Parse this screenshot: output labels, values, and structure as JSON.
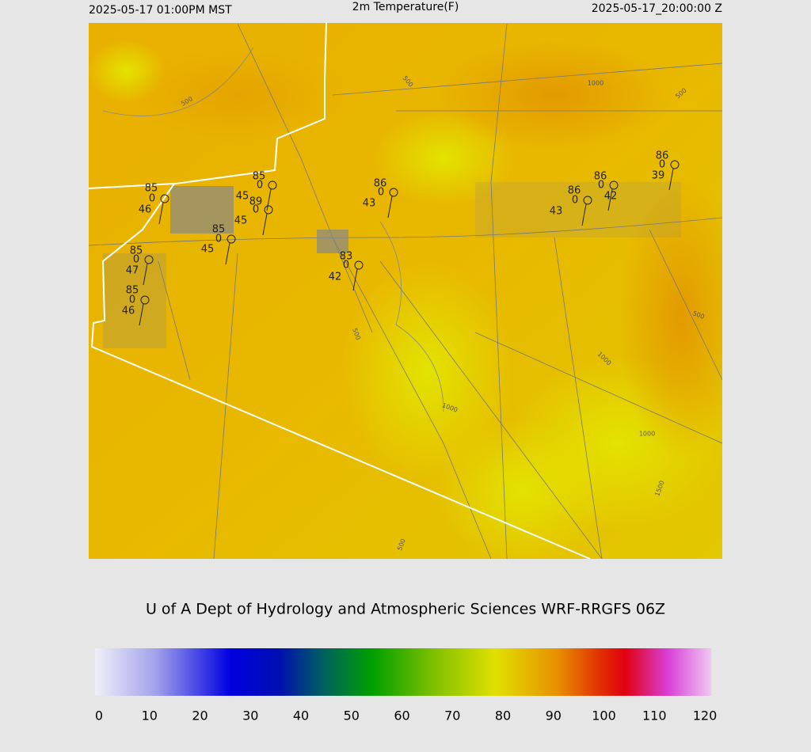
{
  "header": {
    "left": "2025-05-17 01:00PM MST",
    "title": "2m Temperature(F)",
    "right": "2025-05-17_20:00:00 Z"
  },
  "stations": [
    {
      "temperature": 85,
      "wind": 0,
      "dewpoint": 46
    },
    {
      "temperature": 85,
      "wind": 0,
      "dewpoint": 45
    },
    {
      "temperature": 89,
      "wind": 0,
      "dewpoint": 45
    },
    {
      "temperature": 85,
      "wind": 0,
      "dewpoint": 45
    },
    {
      "temperature": 85,
      "wind": 0,
      "dewpoint": 47
    },
    {
      "temperature": 85,
      "wind": 0,
      "dewpoint": 46
    },
    {
      "temperature": 86,
      "wind": 0,
      "dewpoint": 43
    },
    {
      "temperature": 83,
      "wind": 0,
      "dewpoint": 42
    },
    {
      "temperature": 86,
      "wind": 0,
      "dewpoint": 43
    },
    {
      "temperature": 86,
      "wind": 0,
      "dewpoint": 42
    },
    {
      "temperature": 86,
      "wind": 0,
      "dewpoint": 39
    }
  ],
  "contour_labels": [
    500,
    500,
    1000,
    500,
    500,
    1000,
    1000,
    500,
    1000,
    1500,
    500
  ],
  "credit": "U of A Dept of Hydrology and Atmospheric Sciences WRF-RRGFS 06Z",
  "colorbar": {
    "range": [
      0,
      120
    ],
    "ticks": [
      0,
      10,
      20,
      30,
      40,
      50,
      60,
      70,
      80,
      90,
      100,
      110,
      120
    ]
  }
}
